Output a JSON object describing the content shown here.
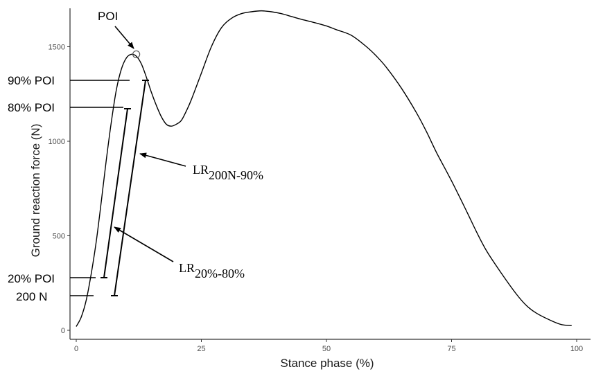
{
  "chart_data": {
    "type": "line",
    "xlabel": "Stance phase (%)",
    "ylabel": "Ground reaction force (N)",
    "xlim": [
      0,
      100
    ],
    "ylim": [
      0,
      1700
    ],
    "x_ticks": [
      "0",
      "25",
      "50",
      "75",
      "100"
    ],
    "y_ticks": [
      "0",
      "500",
      "1000",
      "1500"
    ],
    "grid": false,
    "series": [
      {
        "x": [
          0,
          1,
          2,
          3,
          4,
          5,
          6,
          7,
          8,
          9,
          10,
          11,
          12,
          13,
          14,
          15,
          16,
          17,
          18,
          19,
          20,
          21,
          22,
          23,
          25,
          27,
          29,
          31,
          33,
          35,
          37,
          39,
          41,
          43,
          45,
          48,
          50,
          52,
          55,
          58,
          60,
          62,
          65,
          68,
          70,
          72,
          75,
          78,
          80,
          82,
          85,
          88,
          90,
          92,
          95,
          97,
          99
        ],
        "y": [
          20,
          70,
          160,
          300,
          470,
          680,
          900,
          1100,
          1270,
          1380,
          1440,
          1460,
          1450,
          1410,
          1340,
          1260,
          1190,
          1130,
          1090,
          1080,
          1090,
          1110,
          1160,
          1220,
          1360,
          1500,
          1600,
          1650,
          1675,
          1685,
          1690,
          1685,
          1675,
          1660,
          1645,
          1625,
          1610,
          1590,
          1560,
          1500,
          1450,
          1390,
          1280,
          1150,
          1050,
          940,
          790,
          630,
          520,
          420,
          300,
          190,
          130,
          90,
          50,
          30,
          25
        ]
      }
    ],
    "annotations": {
      "poi_label": "POI",
      "poi_point": [
        12,
        1460
      ],
      "level_labels": [
        {
          "label": "90% POI",
          "y": 1310
        },
        {
          "label": "80% POI",
          "y": 1170
        },
        {
          "label": "20% POI",
          "y": 290
        },
        {
          "label": "200 N",
          "y": 200
        }
      ],
      "lr_200n_90": {
        "main": "LR",
        "sub": "200N-90%"
      },
      "lr_20_80": {
        "main": "LR",
        "sub": "20%-80%"
      }
    }
  }
}
